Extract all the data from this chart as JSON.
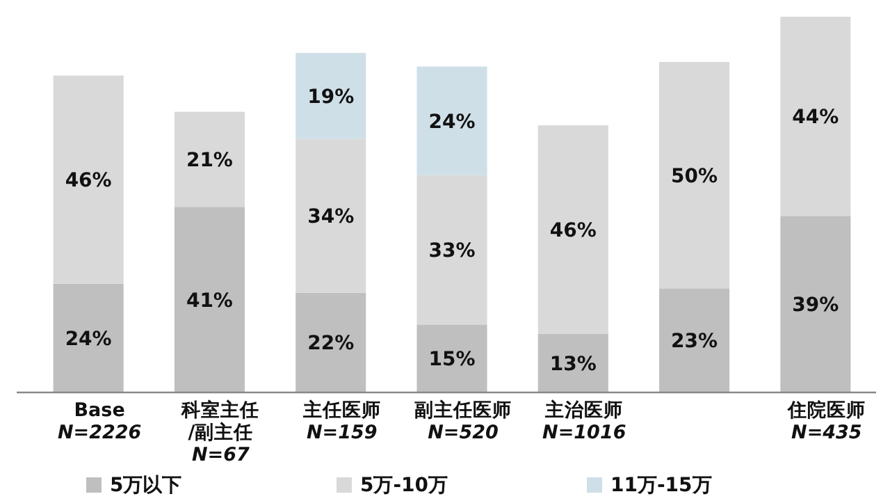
{
  "chart_data": {
    "type": "bar",
    "stacked": true,
    "legend": "bottom",
    "categories": [
      "Base\n*N=2226*",
      "科室主任/副主任\n*N=67*",
      "主任医师\n*N=159*",
      "副主任医师\n*N=520*",
      "主治医师\n*N=1016*",
      null,
      "住院医师\n*N=435*"
    ],
    "series": [
      {
        "name": "5万以下",
        "color": "#bfbfbf",
        "values": [
          24,
          41,
          22,
          15,
          13,
          23,
          39
        ],
        "value_labels": [
          "24%",
          "41%",
          "22%",
          "15%",
          "13%",
          "23%",
          "39%"
        ]
      },
      {
        "name": "5万-10万",
        "color": "#d9d9d9",
        "values": [
          46,
          21,
          34,
          33,
          46,
          50,
          44
        ],
        "value_labels": [
          "46%",
          "21%",
          "34%",
          "33%",
          "46%",
          "50%",
          "44%"
        ]
      },
      {
        "name": "11万-15万",
        "color": "#cfdfe8",
        "values": [
          null,
          null,
          19,
          24,
          null,
          null,
          null
        ],
        "value_labels": [
          null,
          null,
          "19%",
          "24%",
          null,
          null,
          null
        ]
      }
    ]
  }
}
